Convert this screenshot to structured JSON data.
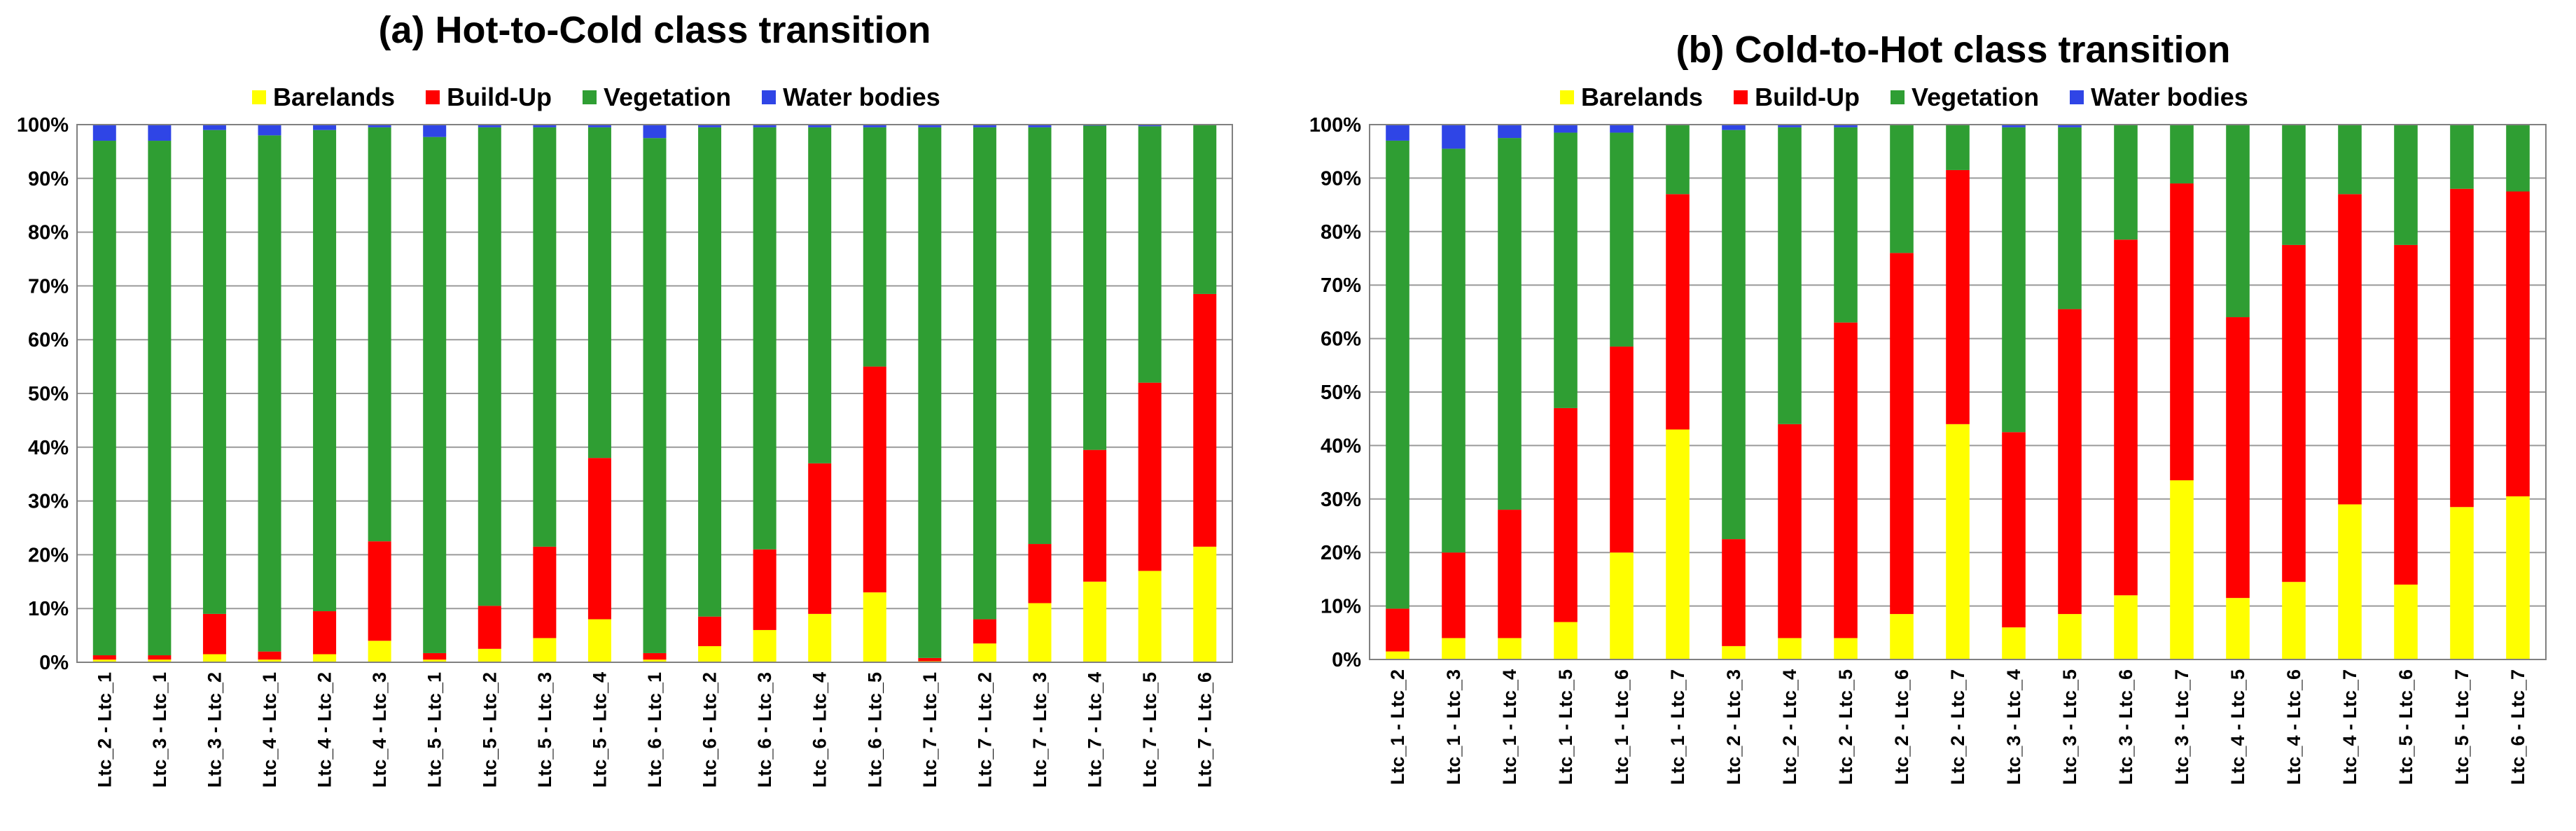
{
  "colors": {
    "Barelands": "#ffff00",
    "Build-Up": "#ff0000",
    "Vegetation": "#2f9e33",
    "Water bodies": "#2f45e6",
    "grid": "#9a9a9a",
    "axis": "#808080"
  },
  "chart_data": [
    {
      "type": "bar",
      "stacked": true,
      "normalized": true,
      "title": "(a) Hot-to-Cold class transition",
      "legend": [
        "Barelands",
        "Build-Up",
        "Vegetation",
        "Water bodies"
      ],
      "legend_position": "top-center",
      "y_ticks": [
        "0%",
        "10%",
        "20%",
        "30%",
        "40%",
        "50%",
        "60%",
        "70%",
        "80%",
        "90%",
        "100%"
      ],
      "ylim": [
        0,
        100
      ],
      "categories": [
        "Ltc_2 - Ltc_1",
        "Ltc_3 - Ltc_1",
        "Ltc_3 - Ltc_2",
        "Ltc_4 - Ltc_1",
        "Ltc_4 - Ltc_2",
        "Ltc_4 - Ltc_3",
        "Ltc_5 - Ltc_1",
        "Ltc_5 - Ltc_2",
        "Ltc_5 - Ltc_3",
        "Ltc_5 - Ltc_4",
        "Ltc_6 - Ltc_1",
        "Ltc_6 - Ltc_2",
        "Ltc_6 - Ltc_3",
        "Ltc_6 - Ltc_4",
        "Ltc_6 - Ltc_5",
        "Ltc_7 - Ltc_1",
        "Ltc_7 - Ltc_2",
        "Ltc_7 - Ltc_3",
        "Ltc_7 - Ltc_4",
        "Ltc_7 - Ltc_5",
        "Ltc_7 - Ltc_6"
      ],
      "series": [
        {
          "name": "Barelands",
          "values": [
            0.5,
            0.5,
            1.5,
            0.5,
            1.5,
            4,
            0.5,
            2.5,
            4.5,
            8,
            0.5,
            3,
            6,
            9,
            13,
            0.2,
            3.5,
            11,
            15,
            17,
            21.5
          ]
        },
        {
          "name": "Build-Up",
          "values": [
            0.8,
            0.8,
            7.5,
            1.5,
            8,
            18.5,
            1.2,
            8,
            17,
            30,
            1.2,
            5.5,
            15,
            28,
            42,
            0.6,
            4.5,
            11,
            24.5,
            35,
            47
          ]
        },
        {
          "name": "Vegetation",
          "values": [
            95.7,
            95.7,
            90,
            96,
            89.5,
            77,
            96,
            89,
            78,
            61.5,
            95.8,
            91,
            78.5,
            62.5,
            44.5,
            98.7,
            91.5,
            77.5,
            60.3,
            47.7,
            31.5
          ]
        },
        {
          "name": "Water bodies",
          "values": [
            3,
            3,
            1,
            2,
            1,
            0.5,
            2.3,
            0.5,
            0.5,
            0.5,
            2.5,
            0.5,
            0.5,
            0.5,
            0.5,
            0.5,
            0.5,
            0.5,
            0.2,
            0.3,
            0
          ]
        }
      ]
    },
    {
      "type": "bar",
      "stacked": true,
      "normalized": true,
      "title": "(b) Cold-to-Hot class transition",
      "legend": [
        "Barelands",
        "Build-Up",
        "Vegetation",
        "Water bodies"
      ],
      "legend_position": "top-center",
      "y_ticks": [
        "0%",
        "10%",
        "20%",
        "30%",
        "40%",
        "50%",
        "60%",
        "70%",
        "80%",
        "90%",
        "100%"
      ],
      "ylim": [
        0,
        100
      ],
      "categories": [
        "Ltc_1 - Ltc_2",
        "Ltc_1 - Ltc_3",
        "Ltc_1 - Ltc_4",
        "Ltc_1 - Ltc_5",
        "Ltc_1 - Ltc_6",
        "Ltc_1 - Ltc_7",
        "Ltc_2 - Ltc_3",
        "Ltc_2 - Ltc_4",
        "Ltc_2 - Ltc_5",
        "Ltc_2 - Ltc_6",
        "Ltc_2 - Ltc_7",
        "Ltc_3 - Ltc_4",
        "Ltc_3 - Ltc_5",
        "Ltc_3 - Ltc_6",
        "Ltc_3 - Ltc_7",
        "Ltc_4 - Ltc_5",
        "Ltc_4 - Ltc_6",
        "Ltc_4 - Ltc_7",
        "Ltc_5 - Ltc_6",
        "Ltc_5 - Ltc_7",
        "Ltc_6 - Ltc_7"
      ],
      "series": [
        {
          "name": "Barelands",
          "values": [
            1.5,
            4,
            4,
            7,
            20,
            43,
            2.5,
            4,
            4,
            8.5,
            44,
            6,
            8.5,
            12,
            33.5,
            11.5,
            14.5,
            29,
            14,
            28.5,
            30.5
          ]
        },
        {
          "name": "Build-Up",
          "values": [
            8,
            16,
            24,
            40,
            38.5,
            44,
            20,
            40,
            59,
            67.5,
            47.5,
            36.5,
            57,
            66.5,
            55.5,
            52.5,
            63,
            58,
            63.5,
            59.5,
            57
          ]
        },
        {
          "name": "Vegetation",
          "values": [
            87.5,
            75.5,
            69.5,
            51.5,
            40,
            13,
            76.5,
            55.5,
            36.5,
            24,
            8.5,
            57,
            34,
            21.5,
            11,
            36,
            22.5,
            13,
            22.5,
            12,
            12.5
          ]
        },
        {
          "name": "Water bodies",
          "values": [
            3,
            4.5,
            2.5,
            1.5,
            1.5,
            0,
            1,
            0.5,
            0.5,
            0,
            0,
            0.5,
            0.5,
            0,
            0,
            0,
            0,
            0,
            0,
            0,
            0
          ]
        }
      ]
    }
  ]
}
